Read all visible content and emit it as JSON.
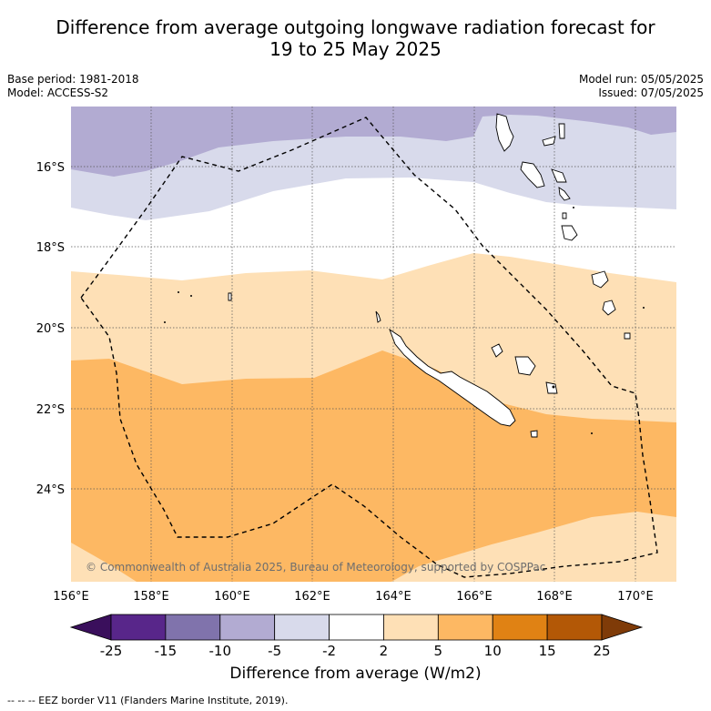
{
  "title_line1": "Difference from average outgoing longwave radiation forecast for",
  "title_line2": "19 to 25 May 2025",
  "base_period": "Base period: 1981-2018",
  "model": "Model: ACCESS-S2",
  "model_run": "Model run: 05/05/2025",
  "issued": "Issued: 07/05/2025",
  "copyright": "© Commonwealth of Australia 2025, Bureau of Meteorology, supported by COSPPac",
  "lon_ticks": [
    "156°E",
    "158°E",
    "160°E",
    "162°E",
    "164°E",
    "166°E",
    "168°E",
    "170°E"
  ],
  "lat_ticks": [
    "16°S",
    "18°S",
    "20°S",
    "22°S",
    "24°S"
  ],
  "colorbar": {
    "ticks": [
      "-25",
      "-15",
      "-10",
      "-5",
      "-2",
      "2",
      "5",
      "10",
      "15",
      "25"
    ],
    "colors": [
      "#3a0f5c",
      "#58268a",
      "#8073ac",
      "#b2abd2",
      "#d8daeb",
      "#ffffff",
      "#fee0b6",
      "#fdb863",
      "#e08214",
      "#b35806",
      "#7f3b08"
    ],
    "label": "Difference from average (W/m2)"
  },
  "footer": "--  --  -- EEZ border V11 (Flanders Marine Institute, 2019)."
}
